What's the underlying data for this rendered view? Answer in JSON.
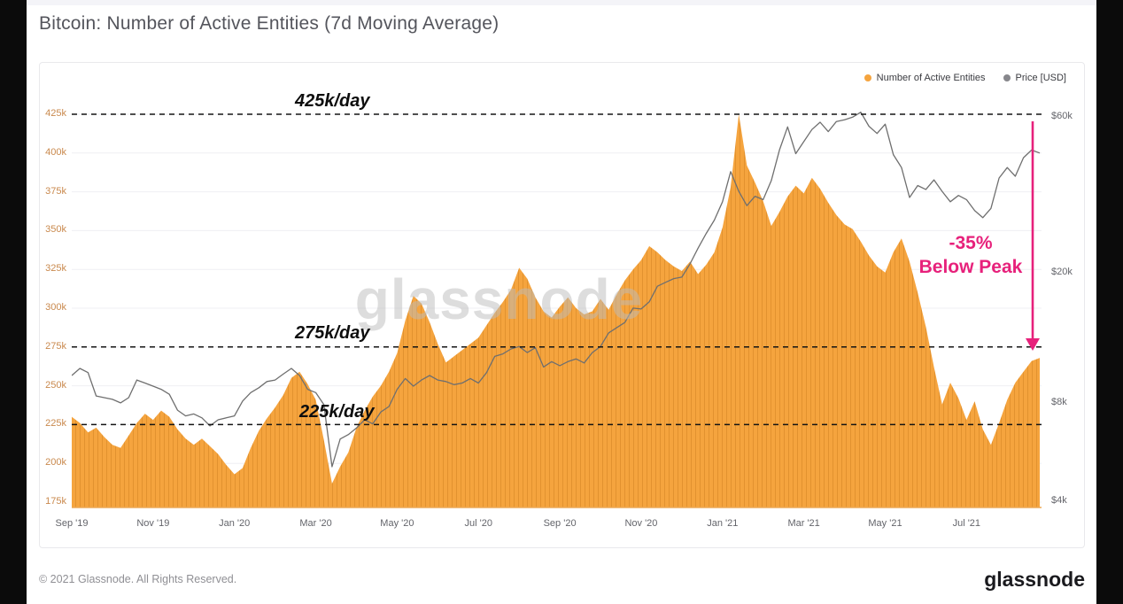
{
  "page": {
    "title": "Bitcoin: Number of Active Entities (7d Moving Average)",
    "watermark": "glassnode",
    "footer": {
      "copyright": "© 2021 Glassnode. All Rights Reserved.",
      "logo": "glassnode"
    }
  },
  "legend": {
    "items": [
      {
        "label": "Number of Active Entities",
        "color": "#F5A43E"
      },
      {
        "label": "Price [USD]",
        "color": "#87878C"
      }
    ]
  },
  "annotations": {
    "hlines": [
      {
        "value": 425,
        "label": "425k/day"
      },
      {
        "value": 275,
        "label": "275k/day"
      },
      {
        "value": 225,
        "label": "225k/day"
      }
    ],
    "below_peak": {
      "line1": "-35%",
      "line2": "Below Peak",
      "color": "#E7217B",
      "arrow_from_value": 425,
      "arrow_to_value": 276
    }
  },
  "chart_data": {
    "type": "area+line",
    "title": "Bitcoin: Number of Active Entities (7d Moving Average)",
    "grid": "horizontal",
    "legend_position": "top-right",
    "x_unit": "months since Sep 2019",
    "x_ticks": [
      {
        "t": 0,
        "label": "Sep '19"
      },
      {
        "t": 2,
        "label": "Nov '19"
      },
      {
        "t": 4,
        "label": "Jan '20"
      },
      {
        "t": 6,
        "label": "Mar '20"
      },
      {
        "t": 8,
        "label": "May '20"
      },
      {
        "t": 10,
        "label": "Jul '20"
      },
      {
        "t": 12,
        "label": "Sep '20"
      },
      {
        "t": 14,
        "label": "Nov '20"
      },
      {
        "t": 16,
        "label": "Jan '21"
      },
      {
        "t": 18,
        "label": "Mar '21"
      },
      {
        "t": 20,
        "label": "May '21"
      },
      {
        "t": 22,
        "label": "Jul '21"
      }
    ],
    "left_axis": {
      "title": "Number of Active Entities",
      "unit": "thousand entities per day",
      "scale": "linear",
      "min": 175,
      "max": 425,
      "ticks": [
        425,
        400,
        375,
        350,
        325,
        300,
        275,
        250,
        225,
        200,
        175
      ]
    },
    "right_axis": {
      "title": "Price [USD]",
      "unit": "USD",
      "scale": "log",
      "ticks": [
        {
          "v": 60,
          "label": "$60k"
        },
        {
          "v": 20,
          "label": "$20k"
        },
        {
          "v": 8,
          "label": "$8k"
        },
        {
          "v": 4,
          "label": "$4k"
        }
      ]
    },
    "x": [
      0,
      0.2,
      0.4,
      0.6,
      0.8,
      1,
      1.2,
      1.4,
      1.6,
      1.8,
      2,
      2.2,
      2.4,
      2.6,
      2.8,
      3,
      3.2,
      3.4,
      3.6,
      3.8,
      4,
      4.2,
      4.4,
      4.6,
      4.8,
      5,
      5.2,
      5.4,
      5.6,
      5.8,
      6,
      6.2,
      6.4,
      6.6,
      6.8,
      7,
      7.2,
      7.4,
      7.6,
      7.8,
      8,
      8.2,
      8.4,
      8.6,
      8.8,
      9,
      9.2,
      9.4,
      9.6,
      9.8,
      10,
      10.2,
      10.4,
      10.6,
      10.8,
      11,
      11.2,
      11.4,
      11.6,
      11.8,
      12,
      12.2,
      12.4,
      12.6,
      12.8,
      13,
      13.2,
      13.4,
      13.6,
      13.8,
      14,
      14.2,
      14.4,
      14.6,
      14.8,
      15,
      15.2,
      15.4,
      15.6,
      15.8,
      16,
      16.2,
      16.4,
      16.6,
      16.8,
      17,
      17.2,
      17.4,
      17.6,
      17.8,
      18,
      18.2,
      18.4,
      18.6,
      18.8,
      19,
      19.2,
      19.4,
      19.6,
      19.8,
      20,
      20.2,
      20.4,
      20.6,
      20.8,
      21,
      21.2,
      21.4,
      21.6,
      21.8,
      22,
      22.2,
      22.4,
      22.6,
      22.8,
      23,
      23.2,
      23.4,
      23.6,
      23.8
    ],
    "series": [
      {
        "name": "Number of Active Entities",
        "type": "area",
        "color": "#F5A43E",
        "unit": "thousand entities per day",
        "values": [
          230,
          226,
          220,
          223,
          217,
          212,
          210,
          218,
          226,
          232,
          228,
          234,
          230,
          222,
          216,
          212,
          216,
          211,
          206,
          199,
          193,
          197,
          210,
          221,
          229,
          236,
          244,
          255,
          259,
          251,
          241,
          215,
          187,
          198,
          207,
          223,
          234,
          243,
          250,
          259,
          271,
          292,
          308,
          303,
          291,
          277,
          265,
          269,
          273,
          277,
          281,
          289,
          297,
          304,
          312,
          326,
          319,
          307,
          298,
          294,
          301,
          307,
          300,
          296,
          298,
          306,
          299,
          309,
          318,
          325,
          331,
          340,
          336,
          331,
          327,
          324,
          330,
          322,
          328,
          336,
          352,
          378,
          425,
          392,
          381,
          369,
          353,
          362,
          372,
          379,
          374,
          384,
          377,
          368,
          360,
          354,
          351,
          343,
          334,
          327,
          323,
          336,
          345,
          330,
          310,
          288,
          262,
          238,
          252,
          242,
          228,
          240,
          222,
          212,
          226,
          241,
          252,
          259,
          266,
          268
        ]
      },
      {
        "name": "Price [USD]",
        "type": "line",
        "color": "#6F6F6F",
        "unit": "thousand USD",
        "values": [
          9.7,
          10.2,
          9.9,
          8.4,
          8.3,
          8.2,
          8.0,
          8.3,
          9.4,
          9.2,
          9.0,
          8.8,
          8.5,
          7.6,
          7.3,
          7.4,
          7.2,
          6.8,
          7.1,
          7.2,
          7.3,
          8.1,
          8.6,
          8.9,
          9.3,
          9.4,
          9.8,
          10.2,
          9.7,
          8.8,
          8.6,
          7.9,
          5.1,
          6.2,
          6.4,
          6.7,
          7.1,
          6.9,
          7.5,
          7.8,
          8.8,
          9.5,
          9.0,
          9.4,
          9.7,
          9.4,
          9.3,
          9.1,
          9.2,
          9.5,
          9.2,
          9.9,
          11.1,
          11.3,
          11.7,
          11.9,
          11.4,
          11.8,
          10.3,
          10.7,
          10.4,
          10.7,
          10.9,
          10.6,
          11.4,
          11.9,
          13.1,
          13.6,
          14.1,
          15.6,
          15.5,
          16.3,
          18.2,
          18.7,
          19.2,
          19.4,
          21.3,
          23.8,
          26.4,
          29.0,
          33.0,
          40.8,
          35.5,
          32.1,
          34.3,
          33.5,
          38.3,
          47.5,
          55.9,
          46.3,
          50.4,
          54.9,
          57.8,
          54.1,
          58.1,
          58.8,
          59.9,
          62.0,
          56.2,
          53.4,
          57.0,
          46.0,
          42.0,
          34.0,
          37.0,
          36.0,
          38.5,
          35.5,
          33.0,
          34.5,
          33.5,
          31.0,
          29.5,
          31.5,
          39.0,
          42.0,
          39.5,
          45.0,
          47.5,
          46.5
        ]
      }
    ]
  }
}
